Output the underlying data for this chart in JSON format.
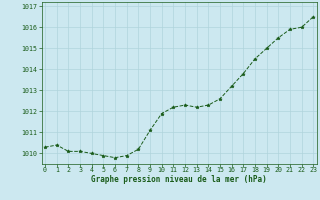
{
  "x": [
    0,
    1,
    2,
    3,
    4,
    5,
    6,
    7,
    8,
    9,
    10,
    11,
    12,
    13,
    14,
    15,
    16,
    17,
    18,
    19,
    20,
    21,
    22,
    23
  ],
  "y": [
    1010.3,
    1010.4,
    1010.1,
    1010.1,
    1010.0,
    1009.9,
    1009.8,
    1009.9,
    1010.2,
    1011.1,
    1011.9,
    1012.2,
    1012.3,
    1012.2,
    1012.3,
    1012.6,
    1013.2,
    1013.8,
    1014.5,
    1015.0,
    1015.5,
    1015.9,
    1016.0,
    1016.5
  ],
  "xlim": [
    -0.3,
    23.3
  ],
  "ylim": [
    1009.5,
    1017.2
  ],
  "yticks": [
    1010,
    1011,
    1012,
    1013,
    1014,
    1015,
    1016,
    1017
  ],
  "xticks": [
    0,
    1,
    2,
    3,
    4,
    5,
    6,
    7,
    8,
    9,
    10,
    11,
    12,
    13,
    14,
    15,
    16,
    17,
    18,
    19,
    20,
    21,
    22,
    23
  ],
  "line_color": "#1a5c1a",
  "marker": "*",
  "marker_size": 2.5,
  "bg_color": "#cce8f0",
  "grid_color": "#b0d4dc",
  "xlabel": "Graphe pression niveau de la mer (hPa)",
  "xlabel_color": "#1a5c1a",
  "tick_color": "#1a5c1a",
  "label_fontsize": 5.5,
  "tick_fontsize": 4.8
}
